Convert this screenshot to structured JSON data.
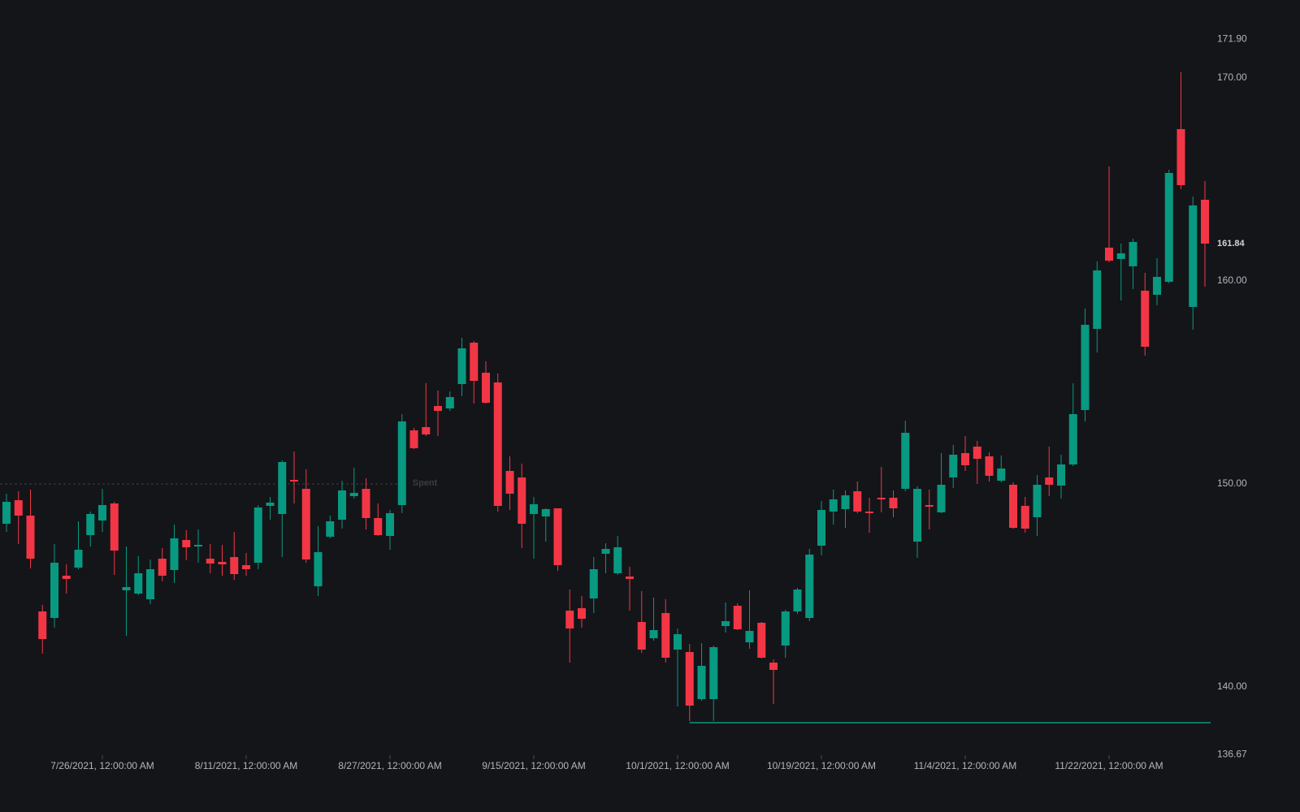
{
  "chart_data": {
    "type": "candlestick",
    "up_color": "#089981",
    "down_color": "#f23645",
    "categories": [
      null,
      null,
      null,
      null,
      null,
      null,
      null,
      null,
      "7/26/2021, 12:00:00 AM",
      null,
      null,
      null,
      null,
      null,
      null,
      null,
      null,
      null,
      null,
      null,
      "8/11/2021, 12:00:00 AM",
      null,
      null,
      null,
      null,
      null,
      null,
      null,
      null,
      null,
      null,
      null,
      "8/27/2021, 12:00:00 AM",
      null,
      null,
      null,
      null,
      null,
      null,
      null,
      null,
      null,
      null,
      null,
      "9/15/2021, 12:00:00 AM",
      null,
      null,
      null,
      null,
      null,
      null,
      null,
      null,
      null,
      null,
      null,
      "10/1/2021, 12:00:00 AM",
      null,
      null,
      null,
      null,
      null,
      null,
      null,
      null,
      null,
      null,
      null,
      "10/19/2021, 12:00:00 AM",
      null,
      null,
      null,
      null,
      null,
      null,
      null,
      null,
      null,
      null,
      null,
      "11/4/2021, 12:00:00 AM",
      null,
      null,
      null,
      null,
      null,
      null,
      null,
      null,
      null,
      null,
      null,
      "11/22/2021, 12:00:00 AM",
      null,
      null,
      null,
      null,
      null,
      null,
      null,
      null
    ],
    "open": [
      148.04,
      149.2,
      148.44,
      143.72,
      143.4,
      145.48,
      145.88,
      147.48,
      148.2,
      149.04,
      144.76,
      144.6,
      144.32,
      146.32,
      145.76,
      147.24,
      146.92,
      146.32,
      146.16,
      146.4,
      146.0,
      146.12,
      148.92,
      148.52,
      150.2,
      149.76,
      144.96,
      147.4,
      148.24,
      149.4,
      149.76,
      148.32,
      147.44,
      148.96,
      152.64,
      152.8,
      153.84,
      153.72,
      154.92,
      156.96,
      155.48,
      155.0,
      150.64,
      150.32,
      148.52,
      148.4,
      148.8,
      143.76,
      143.88,
      144.36,
      146.56,
      145.6,
      145.44,
      143.2,
      142.4,
      143.64,
      141.84,
      141.72,
      139.4,
      139.4,
      143.0,
      144.0,
      142.2,
      143.16,
      141.2,
      142.04,
      143.72,
      143.4,
      146.96,
      148.64,
      148.76,
      149.64,
      148.64,
      149.32,
      149.32,
      149.76,
      147.16,
      148.96,
      148.6,
      150.32,
      151.52,
      151.84,
      151.36,
      150.16,
      149.96,
      148.92,
      148.36,
      150.32,
      149.92,
      150.96,
      153.64,
      157.64,
      161.64,
      161.08,
      160.72,
      159.52,
      159.32,
      159.96,
      167.48,
      158.72,
      164.0
    ],
    "high": [
      149.52,
      149.64,
      149.72,
      144.04,
      147.04,
      146.04,
      148.16,
      148.64,
      149.76,
      149.12,
      146.92,
      146.44,
      146.28,
      146.84,
      148.0,
      147.72,
      147.76,
      147.04,
      147.0,
      147.64,
      146.6,
      148.96,
      149.36,
      151.16,
      151.6,
      150.72,
      147.92,
      148.44,
      150.16,
      150.8,
      150.28,
      149.04,
      148.72,
      153.44,
      152.76,
      154.96,
      154.6,
      154.56,
      157.2,
      157.04,
      156.04,
      155.44,
      151.36,
      151.0,
      149.36,
      148.8,
      148.8,
      144.8,
      144.48,
      146.4,
      147.08,
      147.44,
      145.92,
      144.72,
      144.4,
      144.32,
      142.88,
      142.12,
      142.16,
      142.04,
      144.16,
      144.12,
      144.76,
      143.2,
      141.36,
      143.8,
      144.88,
      146.8,
      149.16,
      149.72,
      149.68,
      150.12,
      149.32,
      150.84,
      149.68,
      153.12,
      149.88,
      149.72,
      151.52,
      151.92,
      152.36,
      152.12,
      151.56,
      151.4,
      150.08,
      149.36,
      150.44,
      151.84,
      151.44,
      154.96,
      158.64,
      160.96,
      165.64,
      161.84,
      162.08,
      160.4,
      161.12,
      165.48,
      170.28,
      164.16,
      164.92
    ],
    "low": [
      147.64,
      147.04,
      145.84,
      141.64,
      142.92,
      144.6,
      145.8,
      146.92,
      147.64,
      145.52,
      142.52,
      144.52,
      144.08,
      145.2,
      145.12,
      146.24,
      146.12,
      145.6,
      145.48,
      145.28,
      145.48,
      145.8,
      148.24,
      146.4,
      149.04,
      146.12,
      144.48,
      147.32,
      147.8,
      149.28,
      147.76,
      147.44,
      146.76,
      148.56,
      151.72,
      152.36,
      152.36,
      153.6,
      154.32,
      153.96,
      153.96,
      148.64,
      148.72,
      146.84,
      146.32,
      147.16,
      145.72,
      141.2,
      142.92,
      143.64,
      145.6,
      145.52,
      143.76,
      141.68,
      142.28,
      141.2,
      139.04,
      138.32,
      139.32,
      138.32,
      142.68,
      142.8,
      141.88,
      141.4,
      139.16,
      141.44,
      143.6,
      143.24,
      146.48,
      148.0,
      147.84,
      148.56,
      147.6,
      148.6,
      148.36,
      149.64,
      146.36,
      147.76,
      148.56,
      149.8,
      150.64,
      150.0,
      150.12,
      150.08,
      147.8,
      147.6,
      147.44,
      149.4,
      149.28,
      150.88,
      153.08,
      156.48,
      160.92,
      159.04,
      159.6,
      156.32,
      158.8,
      159.88,
      164.52,
      157.6,
      159.72
    ],
    "close": [
      149.12,
      148.44,
      146.32,
      142.36,
      146.12,
      145.32,
      146.76,
      148.52,
      148.96,
      146.72,
      144.92,
      145.6,
      145.8,
      145.48,
      147.32,
      146.88,
      147.0,
      146.08,
      146.04,
      145.56,
      145.8,
      148.84,
      149.08,
      151.08,
      150.12,
      146.28,
      146.64,
      148.16,
      149.68,
      149.56,
      148.32,
      147.48,
      148.56,
      153.08,
      151.76,
      152.44,
      153.6,
      154.28,
      156.68,
      155.08,
      154.0,
      148.92,
      149.52,
      148.04,
      149.0,
      148.76,
      146.0,
      142.88,
      143.36,
      145.8,
      146.8,
      146.88,
      145.32,
      141.84,
      142.8,
      141.44,
      142.6,
      139.08,
      141.04,
      141.96,
      143.24,
      142.84,
      142.76,
      141.44,
      140.84,
      143.72,
      144.8,
      146.52,
      148.72,
      149.24,
      149.44,
      148.64,
      148.56,
      149.24,
      148.8,
      152.52,
      149.76,
      148.88,
      149.96,
      151.44,
      150.92,
      151.24,
      150.4,
      150.76,
      147.84,
      147.8,
      149.96,
      149.96,
      150.96,
      153.44,
      157.84,
      160.52,
      161.0,
      161.36,
      161.92,
      156.76,
      160.2,
      165.32,
      164.72,
      163.72,
      161.84
    ],
    "ylim": [
      136.67,
      171.9
    ],
    "yticks": [
      {
        "value": 171.9,
        "label": "171.90"
      },
      {
        "value": 170,
        "label": "170.00"
      },
      {
        "value": 160,
        "label": "160.00"
      },
      {
        "value": 150,
        "label": "150.00"
      },
      {
        "value": 140,
        "label": "140.00"
      },
      {
        "value": 136.67,
        "label": "136.67"
      }
    ],
    "last_price": 161.84,
    "price_line": {
      "label": "Spent",
      "value": 150,
      "color": "#3a3d45"
    },
    "support_line": {
      "value": 138.24,
      "color": "#089981"
    },
    "grid": false
  }
}
